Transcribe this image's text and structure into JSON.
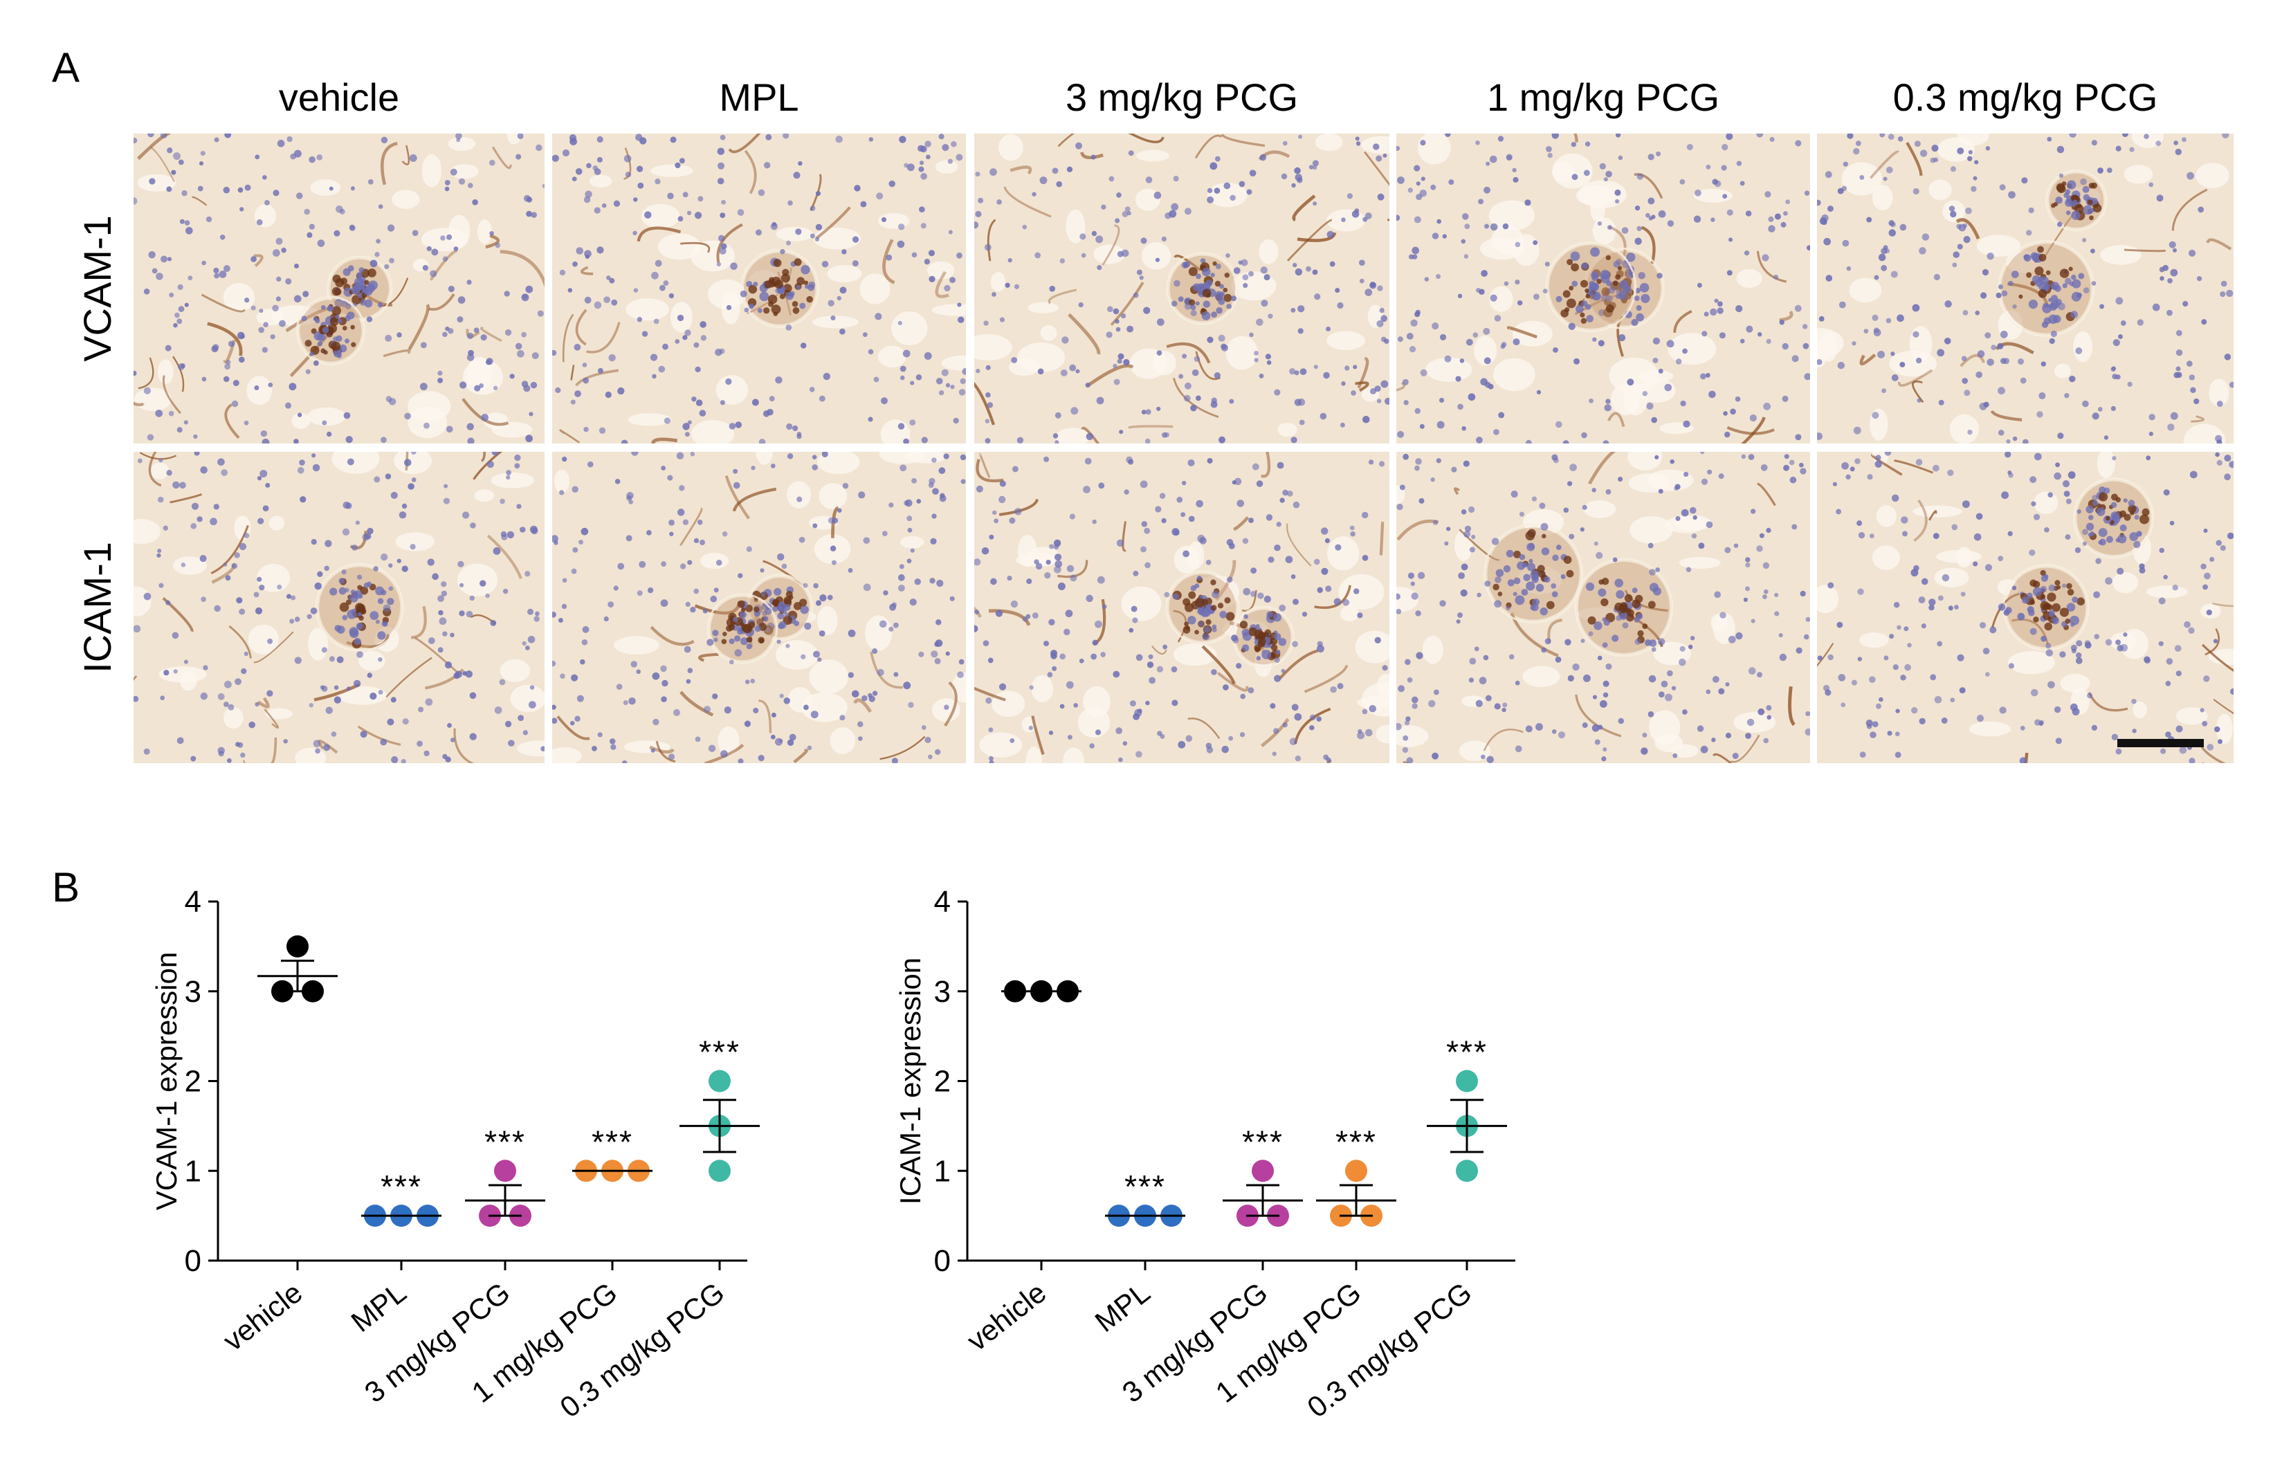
{
  "panel_a": {
    "label": "A",
    "columns": [
      "vehicle",
      "MPL",
      "3 mg/kg PCG",
      "1 mg/kg PCG",
      "0.3 mg/kg PCG"
    ],
    "rows": [
      "VCAM-1",
      "ICAM-1"
    ]
  },
  "panel_b": {
    "label": "B"
  },
  "colors": {
    "vehicle": "#000000",
    "MPL": "#2f6fc2",
    "3 mg/kg PCG": "#b73f9d",
    "1 mg/kg PCG": "#ef8c35",
    "0.3 mg/kg PCG": "#3fb8a4",
    "stain_brown": "#8a4a1c",
    "nuclei_blue": "#6e6fb4",
    "tissue_bg": "#f1e4d2"
  },
  "chart_data": [
    {
      "type": "scatter",
      "ylabel": "VCAM-1 expression",
      "xlabel": "",
      "categories": [
        "vehicle",
        "MPL",
        "3 mg/kg PCG",
        "1 mg/kg PCG",
        "0.3 mg/kg PCG"
      ],
      "ylim": [
        0,
        4
      ],
      "yticks": [
        0,
        1,
        2,
        3,
        4
      ],
      "series": [
        {
          "values": [
            [
              3.5,
              3,
              3
            ],
            [
              0.5,
              0.5,
              0.5
            ],
            [
              1,
              0.5,
              0.5
            ],
            [
              1,
              1,
              1
            ],
            [
              2,
              1.5,
              1
            ]
          ]
        }
      ],
      "mean": [
        3.17,
        0.5,
        0.67,
        1,
        1.5
      ],
      "sem": [
        0.17,
        0,
        0.17,
        0,
        0.29
      ],
      "annotations": [
        "",
        "***",
        "***",
        "***",
        "***"
      ]
    },
    {
      "type": "scatter",
      "ylabel": "ICAM-1 expression",
      "xlabel": "",
      "categories": [
        "vehicle",
        "MPL",
        "3 mg/kg PCG",
        "1 mg/kg PCG",
        "0.3 mg/kg PCG"
      ],
      "ylim": [
        0,
        4
      ],
      "yticks": [
        0,
        1,
        2,
        3,
        4
      ],
      "series": [
        {
          "values": [
            [
              3,
              3,
              3
            ],
            [
              0.5,
              0.5,
              0.5
            ],
            [
              1,
              0.5,
              0.5
            ],
            [
              1,
              0.5,
              0.5
            ],
            [
              2,
              1.5,
              1
            ]
          ]
        }
      ],
      "mean": [
        3,
        0.5,
        0.67,
        0.67,
        1.5
      ],
      "sem": [
        0,
        0,
        0.17,
        0.17,
        0.29
      ],
      "annotations": [
        "",
        "***",
        "***",
        "***",
        "***"
      ]
    }
  ]
}
